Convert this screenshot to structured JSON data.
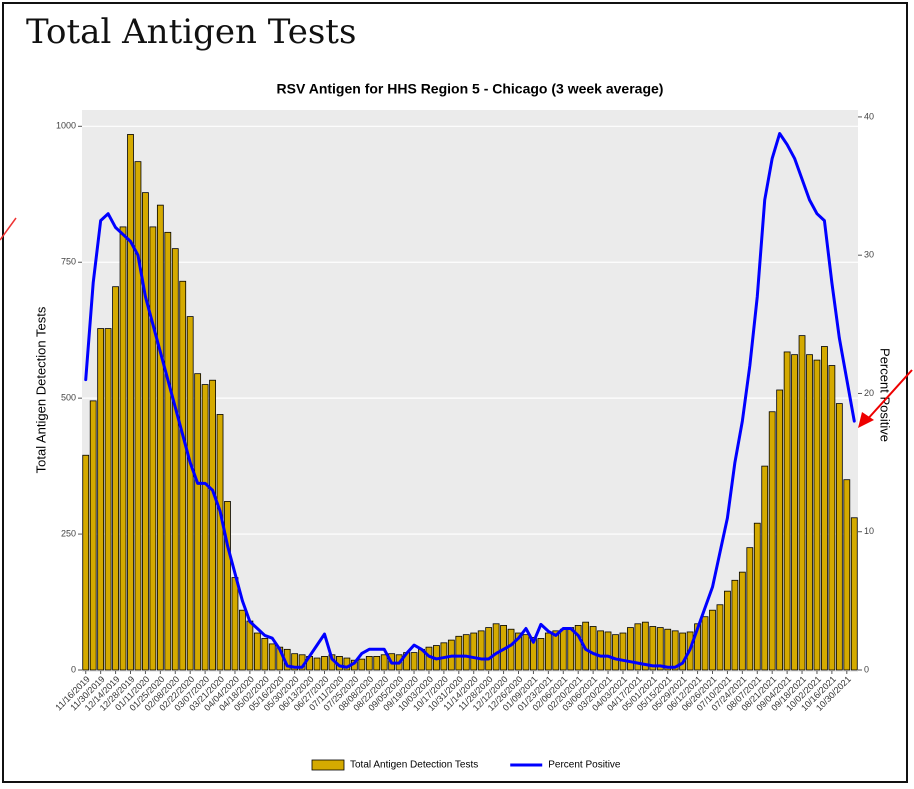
{
  "page_title": "Total Antigen Tests",
  "chart_data": {
    "type": "bar",
    "title": "RSV Antigen for HHS Region 5 - Chicago (3 week average)",
    "y_label": "Total Antigen Detection Tests",
    "y2_label": "Percent Positive",
    "categories": [
      "11/16/2019",
      null,
      "11/30/2019",
      null,
      "12/14/2019",
      null,
      "12/28/2019",
      null,
      "01/11/2020",
      null,
      "01/25/2020",
      null,
      "02/08/2020",
      null,
      "02/22/2020",
      null,
      "03/07/2020",
      null,
      "03/21/2020",
      null,
      "04/04/2020",
      null,
      "04/18/2020",
      null,
      "05/02/2020",
      null,
      "05/16/2020",
      null,
      "05/30/2020",
      null,
      "06/13/2020",
      null,
      "06/27/2020",
      null,
      "07/11/2020",
      null,
      "07/25/2020",
      null,
      "08/08/2020",
      null,
      "08/22/2020",
      null,
      "09/05/2020",
      null,
      "09/19/2020",
      null,
      "10/03/2020",
      null,
      "10/17/2020",
      null,
      "10/31/2020",
      null,
      "11/14/2020",
      null,
      "11/28/2020",
      null,
      "12/12/2020",
      null,
      "12/26/2020",
      null,
      "01/09/2021",
      null,
      "01/23/2021",
      null,
      "02/06/2021",
      null,
      "02/20/2021",
      null,
      "03/06/2021",
      null,
      "03/20/2021",
      null,
      "04/03/2021",
      null,
      "04/17/2021",
      null,
      "05/01/2021",
      null,
      "05/15/2021",
      null,
      "05/29/2021",
      null,
      "06/12/2021",
      null,
      "06/26/2021",
      null,
      "07/10/2021",
      null,
      "07/24/2021",
      null,
      "08/07/2021",
      null,
      "08/21/2021",
      null,
      "09/04/2021",
      null,
      "09/18/2021",
      null,
      "10/02/2021",
      null,
      "10/16/2021",
      null,
      "10/30/2021",
      null
    ],
    "series": [
      {
        "name": "Total Antigen Detection Tests",
        "type": "bar",
        "color": "#d4aa00",
        "values": [
          395,
          495,
          628,
          628,
          705,
          815,
          985,
          935,
          878,
          815,
          855,
          805,
          775,
          715,
          650,
          545,
          525,
          533,
          470,
          310,
          170,
          110,
          90,
          68,
          58,
          48,
          42,
          38,
          30,
          28,
          25,
          22,
          25,
          28,
          25,
          22,
          18,
          20,
          25,
          25,
          28,
          30,
          28,
          32,
          32,
          38,
          42,
          45,
          50,
          55,
          62,
          65,
          68,
          72,
          78,
          85,
          82,
          75,
          68,
          65,
          60,
          58,
          68,
          72,
          75,
          78,
          82,
          88,
          80,
          72,
          70,
          65,
          68,
          78,
          85,
          88,
          80,
          78,
          75,
          72,
          68,
          70,
          85,
          98,
          110,
          120,
          145,
          165,
          180,
          225,
          270,
          375,
          475,
          515,
          585,
          580,
          615,
          580,
          570,
          595,
          560,
          490,
          350,
          280
        ]
      },
      {
        "name": "Percent Positive",
        "type": "line",
        "axis": "y2",
        "color": "#0000ff",
        "values": [
          21,
          28,
          32.5,
          33,
          32,
          31.5,
          31,
          30,
          27,
          25,
          23,
          21,
          19,
          17,
          15,
          13.5,
          13.5,
          13,
          11.5,
          9,
          7,
          5,
          3.5,
          3,
          2.5,
          2.3,
          1.5,
          0.3,
          0.2,
          0.2,
          1,
          1.8,
          2.6,
          0.8,
          0.3,
          0.2,
          0.5,
          1.2,
          1.5,
          1.5,
          1.5,
          0.5,
          0.5,
          1.2,
          1.8,
          1.5,
          1,
          0.8,
          0.9,
          1,
          1,
          1,
          0.9,
          0.8,
          0.8,
          1.2,
          1.5,
          1.8,
          2.3,
          3,
          2,
          3.3,
          2.8,
          2.5,
          3,
          3,
          2.5,
          1.5,
          1.2,
          1,
          1,
          0.8,
          0.7,
          0.6,
          0.5,
          0.4,
          0.3,
          0.3,
          0.2,
          0.2,
          0.5,
          1.5,
          3,
          4.5,
          6,
          8.5,
          11,
          15,
          18,
          22,
          27,
          34,
          37,
          38.8,
          38,
          37,
          35.5,
          34,
          33,
          32.5,
          28,
          24,
          21,
          18
        ]
      }
    ],
    "ylim": [
      0,
      1030
    ],
    "yticks": [
      0,
      250,
      500,
      750,
      1000
    ],
    "y2lim": [
      0,
      40.5
    ],
    "y2ticks": [
      0,
      10,
      20,
      30,
      40
    ],
    "grid": true,
    "legend": "bottom"
  }
}
